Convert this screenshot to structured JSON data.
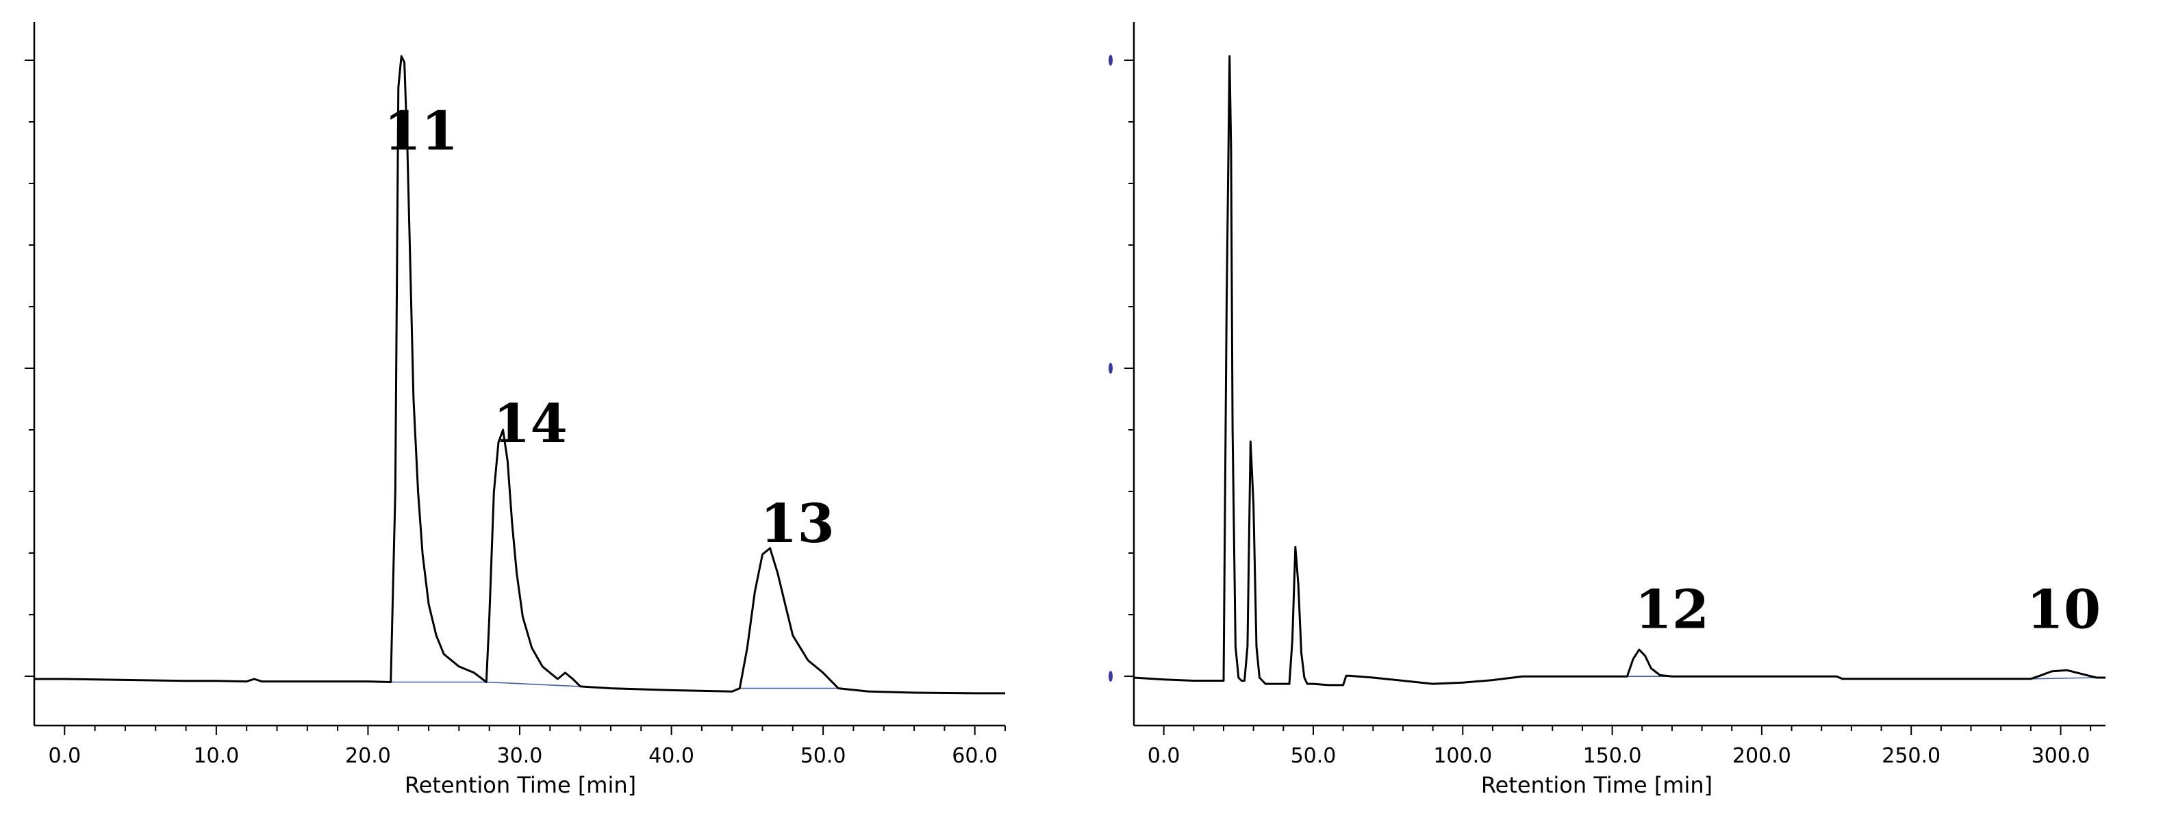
{
  "chart_data": [
    {
      "type": "line",
      "xlabel": "Retention Time [min]",
      "ylabel": "",
      "xlim": [
        -2.0,
        62.0
      ],
      "ylim": [
        -0.07,
        1.08
      ],
      "xticks": [
        0.0,
        10.0,
        20.0,
        30.0,
        40.0,
        50.0,
        60.0
      ],
      "xtick_labels": [
        "0.0",
        "10.0",
        "20.0",
        "30.0",
        "40.0",
        "50.0",
        "60.0"
      ],
      "grid": false,
      "series": [
        {
          "x": [
            -2.0,
            0.0,
            5.0,
            8.0,
            10.0,
            12.0,
            12.5,
            13.0,
            15.0,
            18.0,
            20.0,
            21.5,
            21.8,
            22.0,
            22.2,
            22.4,
            22.6,
            22.8,
            23.0,
            23.3,
            23.6,
            24.0,
            24.5,
            25.0,
            26.0,
            27.0,
            27.8,
            28.0,
            28.3,
            28.6,
            28.9,
            29.2,
            29.5,
            29.8,
            30.2,
            30.8,
            31.5,
            32.5,
            33.0,
            33.5,
            34.0,
            36.0,
            40.0,
            44.0,
            44.5,
            45.0,
            45.5,
            46.0,
            46.5,
            47.0,
            47.5,
            48.0,
            49.0,
            50.0,
            51.0,
            53.0,
            56.0,
            60.0,
            62.0
          ],
          "y": [
            0.0,
            0.0,
            -0.002,
            -0.003,
            -0.003,
            -0.004,
            0.0,
            -0.004,
            -0.004,
            -0.004,
            -0.004,
            -0.005,
            0.3,
            0.95,
            1.0,
            0.99,
            0.85,
            0.65,
            0.45,
            0.3,
            0.2,
            0.12,
            0.07,
            0.04,
            0.02,
            0.01,
            -0.005,
            0.1,
            0.3,
            0.38,
            0.4,
            0.35,
            0.25,
            0.17,
            0.1,
            0.05,
            0.02,
            0.0,
            0.01,
            0.0,
            -0.012,
            -0.015,
            -0.018,
            -0.02,
            -0.015,
            0.05,
            0.14,
            0.2,
            0.21,
            0.17,
            0.12,
            0.07,
            0.03,
            0.01,
            -0.015,
            -0.02,
            -0.022,
            -0.023,
            -0.023
          ]
        }
      ],
      "baseline_segments": [
        {
          "x": [
            21.5,
            27.8
          ],
          "y": [
            -0.005,
            -0.005
          ]
        },
        {
          "x": [
            27.8,
            34.0
          ],
          "y": [
            -0.005,
            -0.012
          ]
        },
        {
          "x": [
            44.5,
            51.0
          ],
          "y": [
            -0.015,
            -0.015
          ]
        }
      ],
      "annotations": [
        {
          "text": "11",
          "x": 23.5,
          "y": 0.85
        },
        {
          "text": "14",
          "x": 30.7,
          "y": 0.38
        },
        {
          "text": "13",
          "x": 48.3,
          "y": 0.22
        }
      ]
    },
    {
      "type": "line",
      "xlabel": "Retention Time [min]",
      "ylabel": "",
      "xlim": [
        -10.0,
        315.0
      ],
      "ylim": [
        -0.08,
        1.08
      ],
      "xticks": [
        0.0,
        50.0,
        100.0,
        150.0,
        200.0,
        250.0,
        300.0
      ],
      "xtick_labels": [
        "0.0",
        "50.0",
        "100.0",
        "150.0",
        "200.0",
        "250.0",
        "300.0"
      ],
      "grid": false,
      "series": [
        {
          "x": [
            -10.0,
            0.0,
            10.0,
            20.0,
            21.0,
            22.0,
            22.5,
            23.0,
            24.0,
            25.0,
            26.0,
            27.0,
            28.0,
            29.0,
            30.0,
            31.0,
            32.0,
            34.0,
            36.0,
            38.0,
            40.0,
            42.0,
            43.0,
            44.0,
            45.0,
            46.0,
            47.0,
            48.0,
            50.0,
            55.0,
            60.0,
            61.0,
            62.0,
            70.0,
            80.0,
            90.0,
            100.0,
            110.0,
            120.0,
            140.0,
            155.0,
            157.0,
            159.0,
            161.0,
            163.0,
            166.0,
            170.0,
            180.0,
            200.0,
            225.0,
            227.0,
            250.0,
            270.0,
            290.0,
            293.0,
            297.0,
            302.0,
            307.0,
            312.0,
            315.0
          ],
          "y": [
            0.0,
            -0.003,
            -0.005,
            -0.005,
            0.6,
            1.0,
            0.85,
            0.4,
            0.05,
            0.0,
            -0.005,
            -0.005,
            0.05,
            0.38,
            0.28,
            0.05,
            0.0,
            -0.01,
            -0.01,
            -0.01,
            -0.01,
            -0.01,
            0.06,
            0.21,
            0.15,
            0.04,
            0.0,
            -0.01,
            -0.01,
            -0.012,
            -0.012,
            0.003,
            0.003,
            0.0,
            -0.005,
            -0.01,
            -0.008,
            -0.004,
            0.002,
            0.002,
            0.002,
            0.03,
            0.045,
            0.035,
            0.015,
            0.004,
            0.002,
            0.002,
            0.002,
            0.002,
            -0.002,
            -0.002,
            -0.002,
            -0.002,
            0.003,
            0.01,
            0.012,
            0.006,
            0.0,
            0.0
          ]
        }
      ],
      "baseline_segments": [
        {
          "x": [
            154.0,
            172.0
          ],
          "y": [
            0.002,
            0.002
          ]
        },
        {
          "x": [
            290.0,
            312.0
          ],
          "y": [
            -0.002,
            0.0
          ]
        }
      ],
      "annotations": [
        {
          "text": "12",
          "x": 170.0,
          "y": 0.08
        },
        {
          "text": "10",
          "x": 301.0,
          "y": 0.08
        }
      ]
    }
  ]
}
